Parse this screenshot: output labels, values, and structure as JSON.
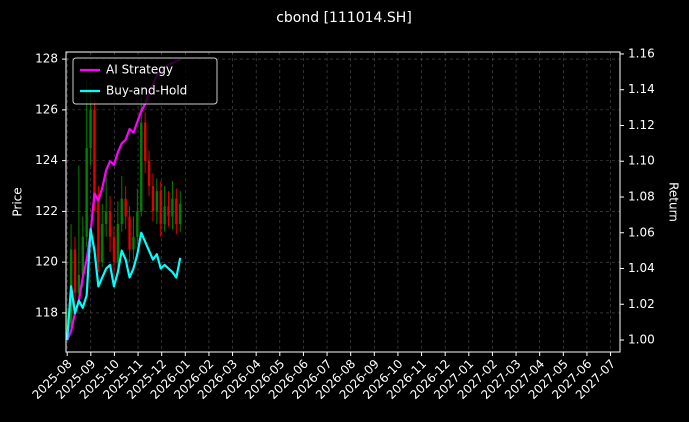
{
  "chart_data": {
    "type": "candlestick",
    "title": "cbond [111014.SH]",
    "ylabel": "Price",
    "y2label": "Return",
    "x": [
      0,
      0.165,
      0.33,
      0.495,
      0.66,
      0.825,
      0.99,
      1.155,
      1.32,
      1.485,
      1.65,
      1.815,
      1.98,
      2.145,
      2.31,
      2.475,
      2.64,
      2.805,
      2.97,
      3.135,
      3.3,
      3.465,
      3.63,
      3.795,
      3.96,
      4.125,
      4.29,
      4.455,
      4.62,
      4.785
    ],
    "open": [
      117.3,
      117.6,
      120.5,
      118.8,
      119.5,
      121.0,
      124.5,
      126.0,
      122.5,
      120.0,
      121.5,
      122.0,
      121.0,
      120.0,
      121.5,
      122.5,
      121.8,
      120.5,
      121.0,
      122.0,
      125.5,
      124.0,
      123.0,
      122.0,
      122.8,
      121.5,
      122.2,
      121.8,
      122.5,
      121.5
    ],
    "high": [
      118.2,
      121.5,
      121.0,
      123.8,
      121.8,
      127.2,
      126.8,
      126.4,
      123.0,
      122.3,
      123.5,
      122.6,
      121.4,
      122.4,
      123.4,
      123.0,
      122.2,
      121.8,
      122.9,
      126.5,
      125.9,
      124.4,
      123.5,
      123.3,
      123.2,
      123.0,
      122.8,
      123.2,
      122.9,
      122.8
    ],
    "low": [
      117.0,
      117.4,
      118.3,
      118.5,
      119.0,
      120.6,
      123.8,
      122.0,
      119.6,
      119.8,
      121.0,
      120.4,
      119.5,
      119.8,
      121.2,
      121.3,
      120.0,
      120.1,
      120.7,
      121.8,
      123.5,
      122.6,
      121.6,
      121.5,
      121.0,
      121.2,
      121.4,
      121.3,
      121.1,
      121.2
    ],
    "close": [
      117.6,
      120.5,
      118.8,
      119.5,
      121.0,
      124.5,
      126.0,
      122.5,
      120.0,
      121.5,
      122.0,
      121.0,
      120.0,
      121.5,
      122.5,
      121.8,
      120.5,
      121.0,
      122.0,
      125.5,
      124.0,
      123.0,
      122.0,
      122.8,
      121.5,
      122.2,
      121.8,
      122.5,
      121.5,
      122.3
    ],
    "up_color": "#008000",
    "down_color": "#e00000",
    "series": [
      {
        "name": "AI Strategy",
        "color": "#ff00ff",
        "axis": "y2",
        "values": [
          1.0,
          1.005,
          1.015,
          1.022,
          1.035,
          1.045,
          1.06,
          1.082,
          1.078,
          1.085,
          1.095,
          1.1,
          1.098,
          1.105,
          1.11,
          1.112,
          1.118,
          1.116,
          1.122,
          1.128,
          1.132,
          1.138,
          1.143,
          1.148,
          1.15,
          1.152,
          1.154,
          1.155,
          1.156,
          1.157
        ]
      },
      {
        "name": "Buy-and-Hold",
        "color": "#00ffff",
        "axis": "y2",
        "values": [
          1.0,
          1.03,
          1.015,
          1.022,
          1.018,
          1.025,
          1.062,
          1.05,
          1.03,
          1.035,
          1.04,
          1.042,
          1.03,
          1.038,
          1.05,
          1.045,
          1.035,
          1.04,
          1.048,
          1.06,
          1.055,
          1.05,
          1.045,
          1.048,
          1.04,
          1.042,
          1.04,
          1.038,
          1.035,
          1.046
        ]
      }
    ],
    "xlim": [
      -0.05,
      23.4
    ],
    "xticks": [
      {
        "value": 0,
        "label": "2025-08"
      },
      {
        "value": 1,
        "label": "2025-09"
      },
      {
        "value": 2,
        "label": "2025-10"
      },
      {
        "value": 3,
        "label": "2025-11"
      },
      {
        "value": 4,
        "label": "2025-12"
      },
      {
        "value": 5,
        "label": "2026-01"
      },
      {
        "value": 6,
        "label": "2026-02"
      },
      {
        "value": 7,
        "label": "2026-03"
      },
      {
        "value": 8,
        "label": "2026-04"
      },
      {
        "value": 9,
        "label": "2026-05"
      },
      {
        "value": 10,
        "label": "2026-06"
      },
      {
        "value": 11,
        "label": "2026-07"
      },
      {
        "value": 12,
        "label": "2026-08"
      },
      {
        "value": 13,
        "label": "2026-09"
      },
      {
        "value": 14,
        "label": "2026-10"
      },
      {
        "value": 15,
        "label": "2026-11"
      },
      {
        "value": 16,
        "label": "2026-12"
      },
      {
        "value": 17,
        "label": "2027-01"
      },
      {
        "value": 18,
        "label": "2027-02"
      },
      {
        "value": 19,
        "label": "2027-03"
      },
      {
        "value": 20,
        "label": "2027-04"
      },
      {
        "value": 21,
        "label": "2027-05"
      },
      {
        "value": 22,
        "label": "2027-06"
      },
      {
        "value": 23,
        "label": "2027-07"
      }
    ],
    "ylim": [
      116.46,
      128.28
    ],
    "yticks": [
      118,
      120,
      122,
      124,
      126,
      128
    ],
    "y2lim": [
      0.9933,
      1.1611
    ],
    "y2ticks": [
      {
        "value": 1,
        "label": "1.00"
      },
      1.02,
      1.04,
      1.06,
      1.08,
      {
        "value": 1.1,
        "label": "1.10"
      },
      1.12,
      1.14,
      1.16
    ],
    "grid": true,
    "legend": "upper left"
  }
}
